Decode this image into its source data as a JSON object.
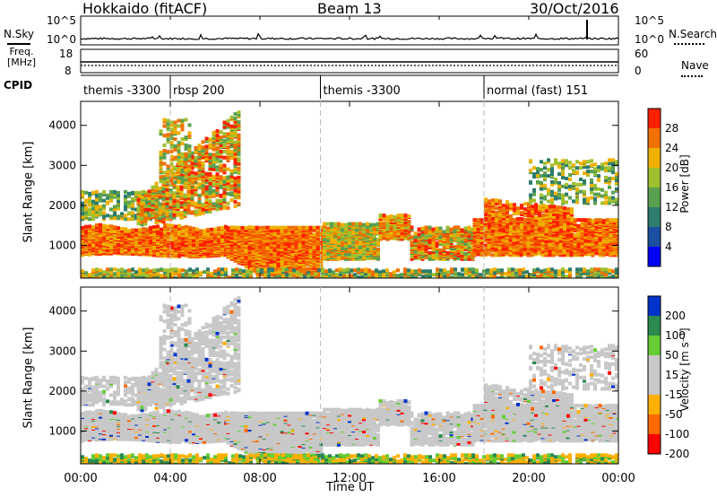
{
  "header": {
    "station": "Hokkaido (fitACF)",
    "beam": "Beam 13",
    "date": "30/Oct/2016"
  },
  "noise_panel": {
    "left_label": "N.Sky",
    "right_label": "N.Search",
    "left_ticks": [
      "10^5",
      "10^0"
    ],
    "right_ticks": [
      "10^5",
      "10^0"
    ]
  },
  "freq_panel": {
    "left_label_line1": "Freq.",
    "left_label_line2": "[MHz]",
    "right_label": "Nave",
    "left_ticks": [
      "18",
      "8"
    ],
    "right_ticks": [
      "60",
      "0"
    ]
  },
  "cpid_panel": {
    "label": "CPID",
    "segments": [
      {
        "label": "themis -3300",
        "start_hour": 0
      },
      {
        "label": "rbsp 200",
        "start_hour": 4.0
      },
      {
        "label": "themis -3300",
        "start_hour": 10.7
      },
      {
        "label": "normal (fast) 151",
        "start_hour": 18.0
      }
    ]
  },
  "chart_data": [
    {
      "type": "heatmap",
      "parameter": "power",
      "ylabel": "Slant Range [km]",
      "ylim": [
        180,
        4600
      ],
      "yticks": [
        "1000",
        "2000",
        "3000",
        "4000"
      ],
      "xlim_hours": [
        0,
        24
      ],
      "colorbar": {
        "label": "Power [dB]",
        "range": [
          0,
          32
        ],
        "ticks": [
          "4",
          "8",
          "12",
          "16",
          "20",
          "24",
          "28"
        ]
      }
    },
    {
      "type": "heatmap",
      "parameter": "velocity",
      "ylabel": "Slant Range [km]",
      "ylim": [
        180,
        4600
      ],
      "yticks": [
        "1000",
        "2000",
        "3000",
        "4000"
      ],
      "xlim_hours": [
        0,
        24
      ],
      "colorbar": {
        "label": "Velocity [m s⁻¹]",
        "range": [
          -250,
          250
        ],
        "ticks": [
          "200",
          "100",
          "50",
          "15",
          "-15",
          "-50",
          "-100",
          "-200"
        ]
      }
    }
  ],
  "xaxis": {
    "ticks": [
      "00:00",
      "04:00",
      "08:00",
      "12:00",
      "16:00",
      "20:00",
      "00:00"
    ],
    "label": "Time UT"
  },
  "colors": {
    "power_scale": [
      "#0000ff",
      "#1b4fa0",
      "#2e7d6e",
      "#5aa050",
      "#a0c030",
      "#f0b000",
      "#f07000",
      "#ff2000"
    ],
    "velocity_scale": [
      "#ff0000",
      "#ff6a00",
      "#ffb000",
      "#c8c8c8",
      "#c8c8c8",
      "#66cc33",
      "#2a8a50",
      "#0033cc"
    ]
  }
}
